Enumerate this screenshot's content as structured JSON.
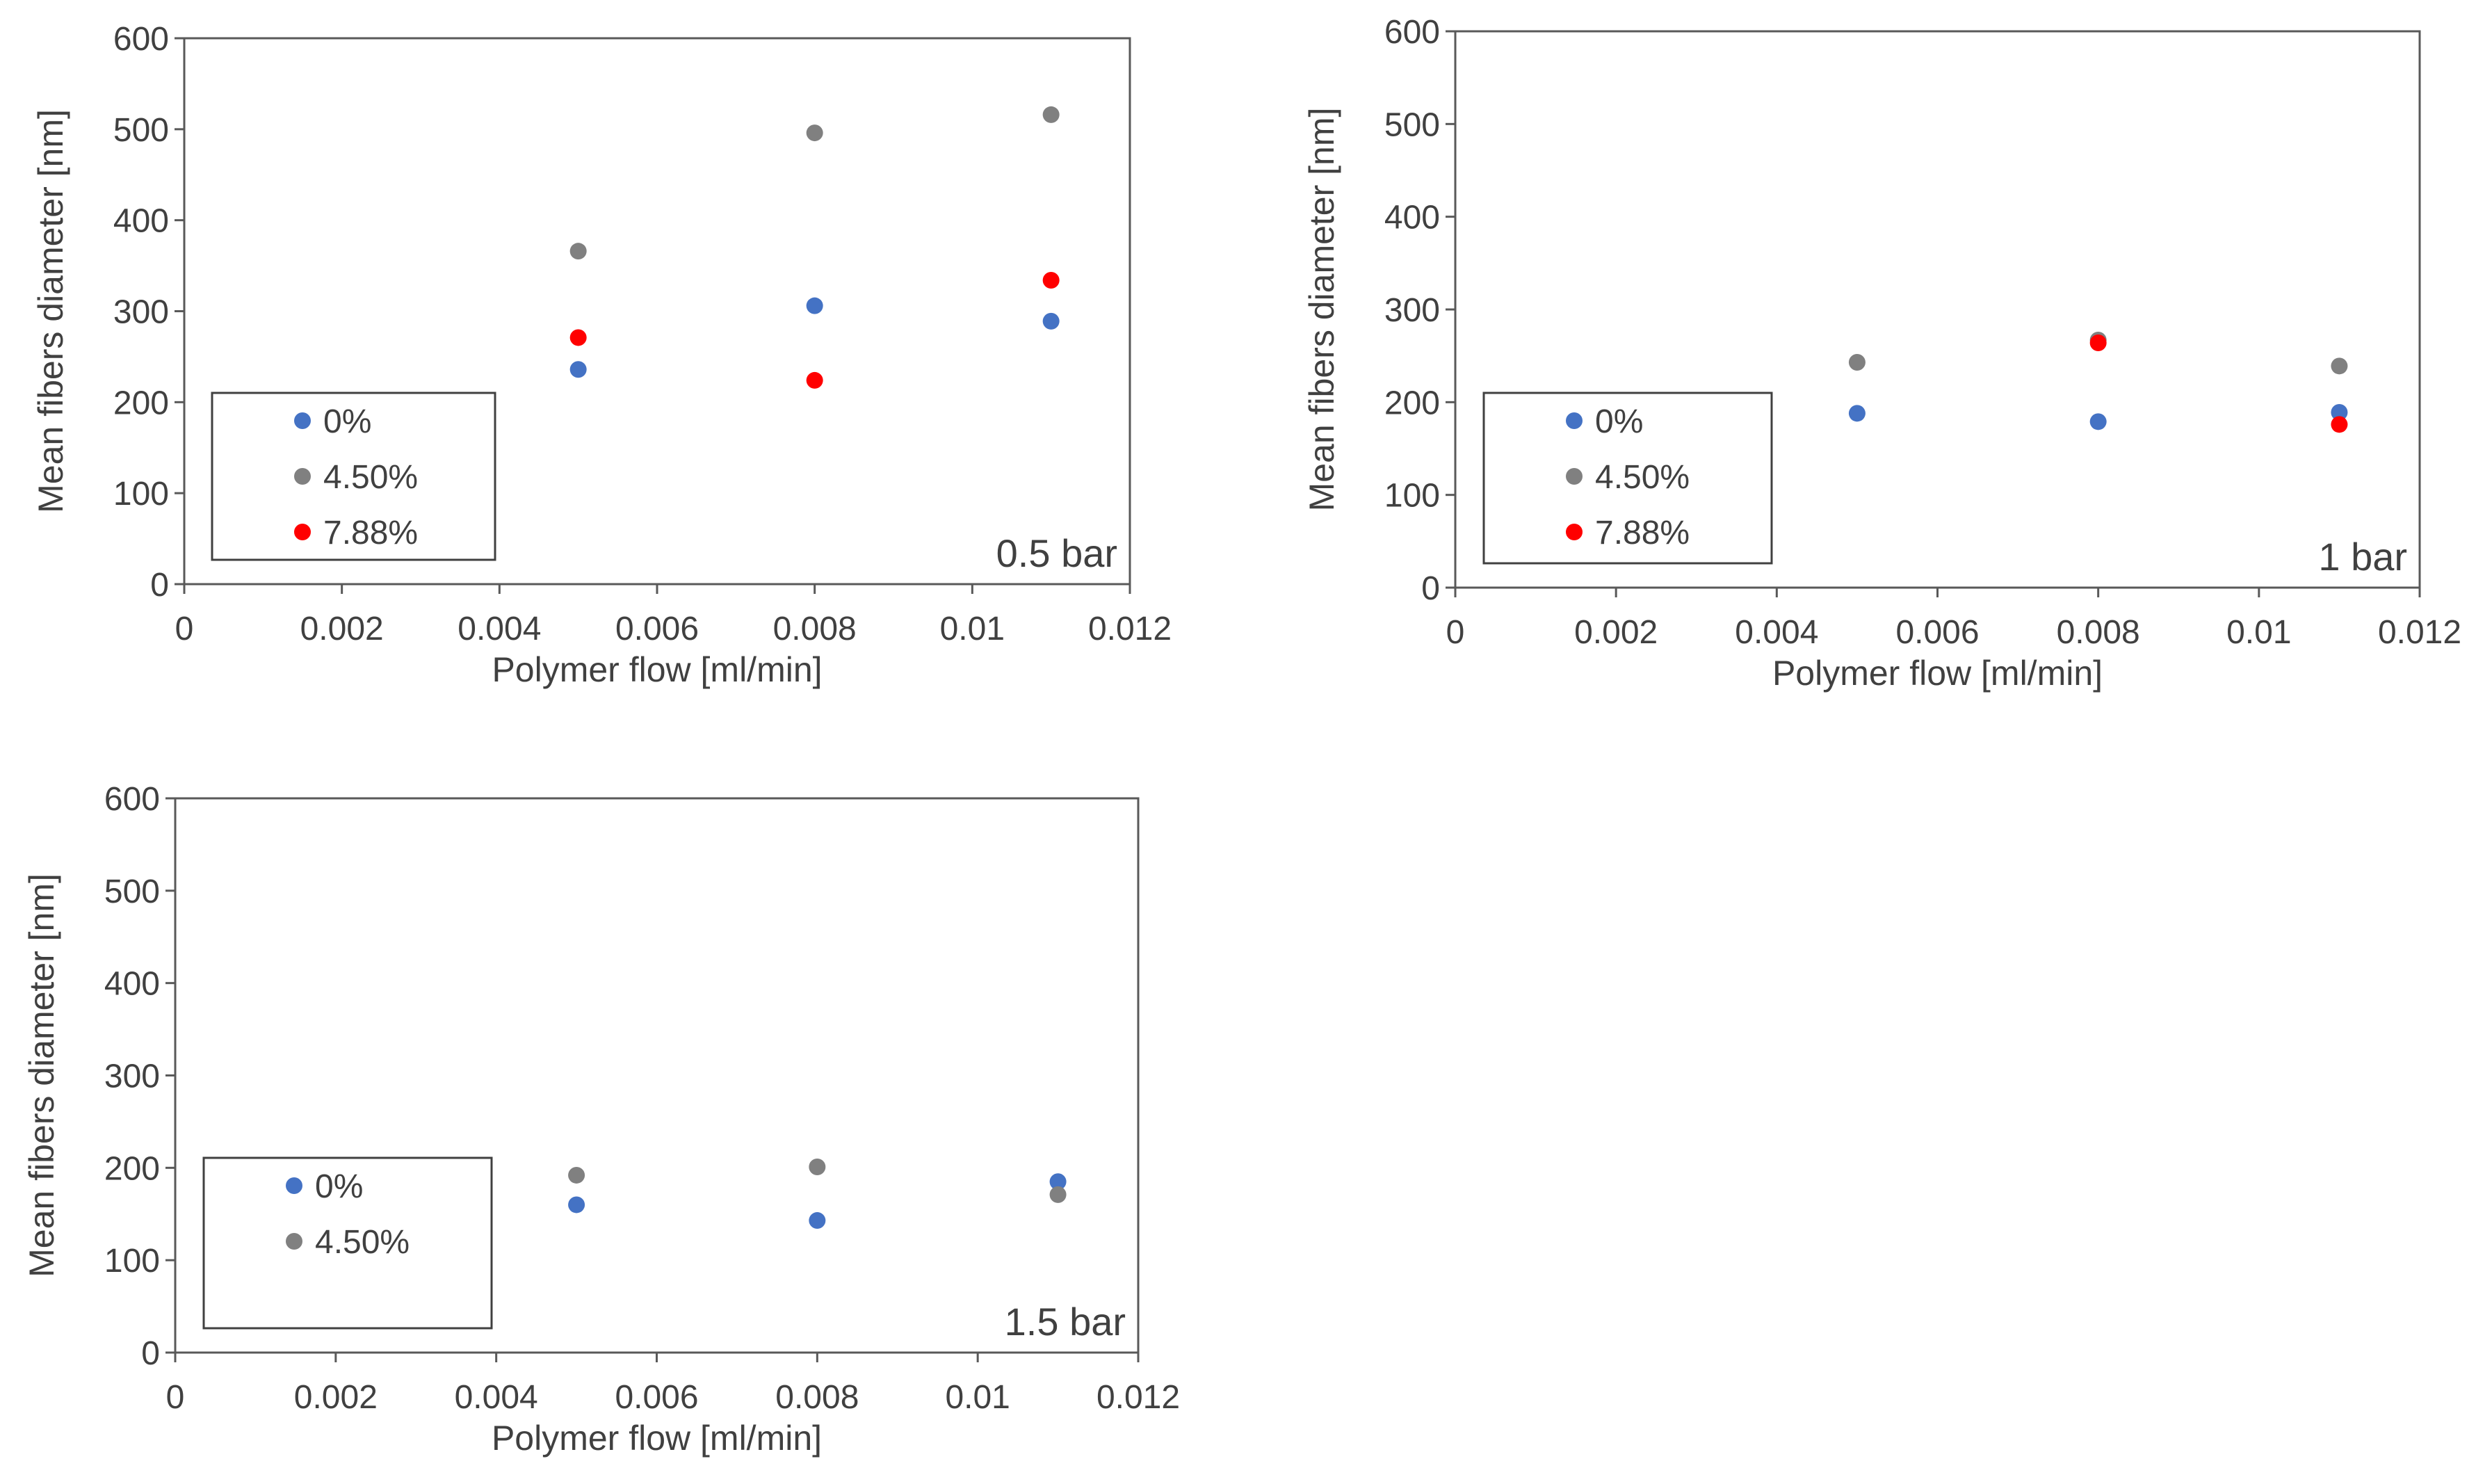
{
  "chart_data": [
    {
      "type": "scatter",
      "panel_label": "0.5 bar",
      "xlabel": "Polymer flow [ml/min]",
      "ylabel": "Mean fibers diameter [nm]",
      "xlim": [
        0,
        0.012
      ],
      "ylim": [
        0,
        600
      ],
      "x_ticks": [
        0,
        0.002,
        0.004,
        0.006,
        0.008,
        0.01,
        0.012
      ],
      "x_tick_labels": [
        "0",
        "0.002",
        "0.004",
        "0.006",
        "0.008",
        "0.01",
        "0.012"
      ],
      "y_ticks": [
        0,
        100,
        200,
        300,
        400,
        500,
        600
      ],
      "y_tick_labels": [
        "0",
        "100",
        "200",
        "300",
        "400",
        "500",
        "600"
      ],
      "legend_position": "bottom-left",
      "series": [
        {
          "name": "0%",
          "color": "#4472C4",
          "x": [
            0.005,
            0.008,
            0.011
          ],
          "y": [
            236,
            306,
            289
          ]
        },
        {
          "name": "4.50%",
          "color": "#808080",
          "x": [
            0.005,
            0.008,
            0.011
          ],
          "y": [
            366,
            496,
            516
          ]
        },
        {
          "name": "7.88%",
          "color": "#FF0000",
          "x": [
            0.005,
            0.008,
            0.011
          ],
          "y": [
            271,
            224,
            334
          ]
        }
      ]
    },
    {
      "type": "scatter",
      "panel_label": "1 bar",
      "xlabel": "Polymer flow [ml/min]",
      "ylabel": "Mean fibers diameter [nm]",
      "xlim": [
        0,
        0.012
      ],
      "ylim": [
        0,
        600
      ],
      "x_ticks": [
        0,
        0.002,
        0.004,
        0.006,
        0.008,
        0.01,
        0.012
      ],
      "x_tick_labels": [
        "0",
        "0.002",
        "0.004",
        "0.006",
        "0.008",
        "0.01",
        "0.012"
      ],
      "y_ticks": [
        0,
        100,
        200,
        300,
        400,
        500,
        600
      ],
      "y_tick_labels": [
        "0",
        "100",
        "200",
        "300",
        "400",
        "500",
        "600"
      ],
      "legend_position": "bottom-left",
      "series": [
        {
          "name": "0%",
          "color": "#4472C4",
          "x": [
            0.005,
            0.008,
            0.011
          ],
          "y": [
            188,
            179,
            189
          ]
        },
        {
          "name": "4.50%",
          "color": "#808080",
          "x": [
            0.005,
            0.008,
            0.011
          ],
          "y": [
            243,
            267,
            239
          ]
        },
        {
          "name": "7.88%",
          "color": "#FF0000",
          "x": [
            0.008,
            0.011
          ],
          "y": [
            264,
            176
          ]
        }
      ]
    },
    {
      "type": "scatter",
      "panel_label": "1.5 bar",
      "xlabel": "Polymer flow [ml/min]",
      "ylabel": "Mean fibers diameter [nm]",
      "xlim": [
        0,
        0.012
      ],
      "ylim": [
        0,
        600
      ],
      "x_ticks": [
        0,
        0.002,
        0.004,
        0.006,
        0.008,
        0.01,
        0.012
      ],
      "x_tick_labels": [
        "0",
        "0.002",
        "0.004",
        "0.006",
        "0.008",
        "0.01",
        "0.012"
      ],
      "y_ticks": [
        0,
        100,
        200,
        300,
        400,
        500,
        600
      ],
      "y_tick_labels": [
        "0",
        "100",
        "200",
        "300",
        "400",
        "500",
        "600"
      ],
      "legend_position": "bottom-left",
      "series": [
        {
          "name": "0%",
          "color": "#4472C4",
          "x": [
            0.005,
            0.008,
            0.011
          ],
          "y": [
            160,
            143,
            185
          ]
        },
        {
          "name": "4.50%",
          "color": "#808080",
          "x": [
            0.005,
            0.008,
            0.011
          ],
          "y": [
            192,
            201,
            171
          ]
        }
      ]
    }
  ]
}
